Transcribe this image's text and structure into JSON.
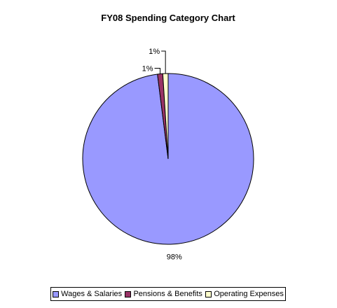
{
  "chart_data": {
    "type": "pie",
    "title": "FY08 Spending Category Chart",
    "slices": [
      {
        "label": "Wages & Salaries",
        "value": 98,
        "pct_label": "98%",
        "color": "#9999ff"
      },
      {
        "label": "Pensions & Benefits",
        "value": 1,
        "pct_label": "1%",
        "color": "#993366"
      },
      {
        "label": "Operating Expenses",
        "value": 1,
        "pct_label": "1%",
        "color": "#ffffcc"
      }
    ],
    "legend_position": "bottom"
  }
}
